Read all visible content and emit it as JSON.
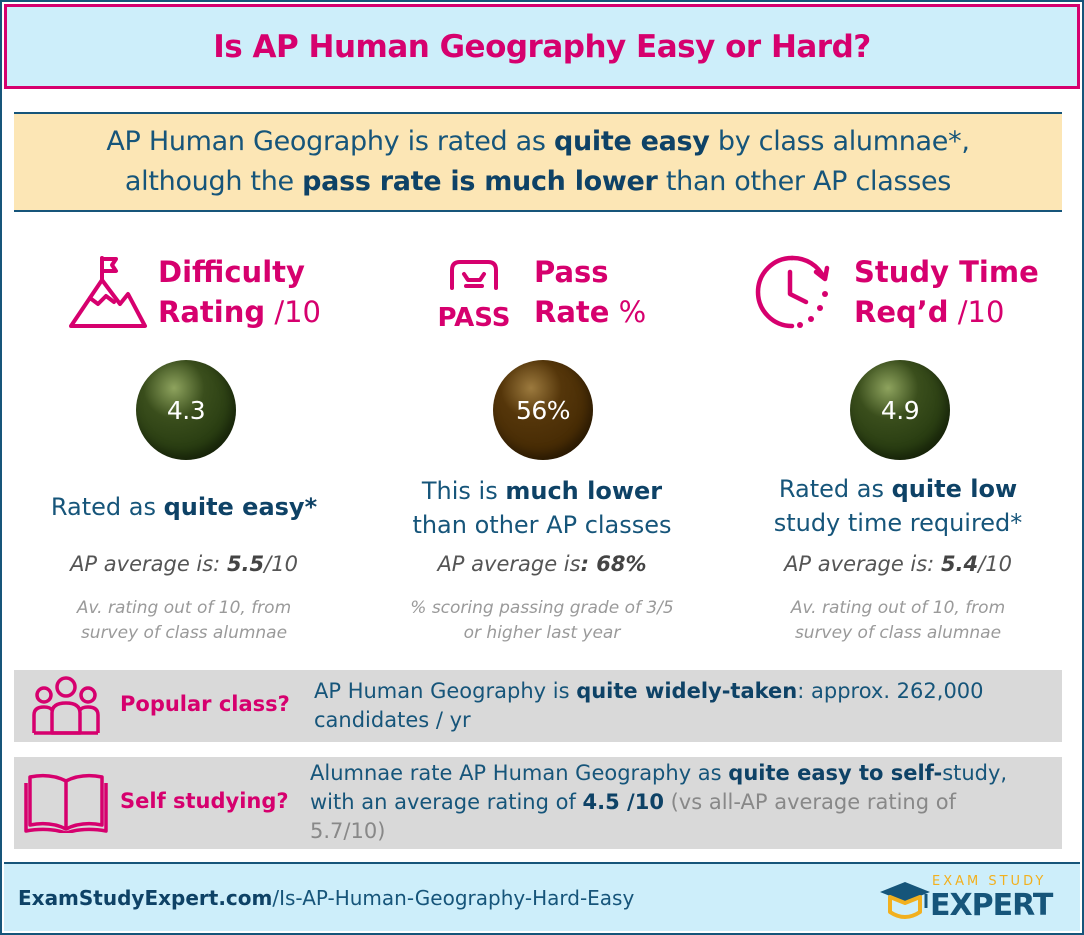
{
  "title": "Is AP Human Geography Easy or Hard?",
  "summary": {
    "l1_a": "AP Human Geography is rated as ",
    "l1_b": "quite easy",
    "l1_c": " by class alumnae*,",
    "l2_a": "although the ",
    "l2_b": "pass rate is much lower",
    "l2_c": " than other AP classes"
  },
  "columns": [
    {
      "icon": "mountain-flag-icon",
      "head_1": "Difficulty",
      "head_2_bold": "Rating",
      "head_2_unit": " /10",
      "value": "4.3",
      "verdict_1a": "Rated as ",
      "verdict_1b": "quite easy*",
      "verdict_2a": "",
      "verdict_2b": "",
      "avg_label": "AP average is: ",
      "avg_value": "5.5",
      "avg_unit": "/10",
      "note_1": "Av. rating out of 10, from",
      "note_2": "survey of class alumnae"
    },
    {
      "icon": "pass-icon",
      "icon_text": "PASS",
      "head_1": "Pass",
      "head_2_bold": "Rate",
      "head_2_unit": " %",
      "value": "56%",
      "verdict_1a": "This is ",
      "verdict_1b": "much lower",
      "verdict_2a": "than other AP classes",
      "verdict_2b": "",
      "avg_label": "AP average is",
      "avg_value": ": 68%",
      "avg_unit": "",
      "note_1": "% scoring passing grade of 3/5",
      "note_2": "or higher last year"
    },
    {
      "icon": "clock-icon",
      "head_1": "Study Time",
      "head_2_bold": "Req’d",
      "head_2_unit": " /10",
      "value": "4.9",
      "verdict_1a": "Rated as ",
      "verdict_1b": "quite low",
      "verdict_2a": "study time required*",
      "verdict_2b": "",
      "avg_label": "AP average is: ",
      "avg_value": "5.4",
      "avg_unit": "/10",
      "note_1": "Av. rating out of 10, from",
      "note_2": "survey of class alumnae"
    }
  ],
  "popular": {
    "icon": "people-group-icon",
    "label": "Popular class?",
    "t1": "AP Human Geography is ",
    "t2": "quite widely-taken",
    "t3": ": approx. 262,000",
    "t4": "candidates / yr"
  },
  "self_study": {
    "icon": "open-book-icon",
    "label": "Self studying?",
    "t1": " Alumnae rate AP Human Geography as ",
    "t2": "quite easy to self-",
    "t3": "study,",
    "t4": "with an average rating of ",
    "t5": "4.5 /10",
    "t6": " (vs all-AP average rating of",
    "t7": "5.7/10)"
  },
  "footer": {
    "url_bold": "ExamStudyExpert.com",
    "url_rest": "/Is-AP-Human-Geography-Hard-Easy",
    "logo_top": "EXAM STUDY",
    "logo_main": "EXPERT"
  },
  "colors": {
    "accent": "#d6006e",
    "navy": "#16557a",
    "title_bg": "#cdeefa",
    "summary_bg": "#fce6b5",
    "band_bg": "#d9d9d9",
    "ball_green": "#263a10",
    "ball_brown": "#452a04"
  }
}
